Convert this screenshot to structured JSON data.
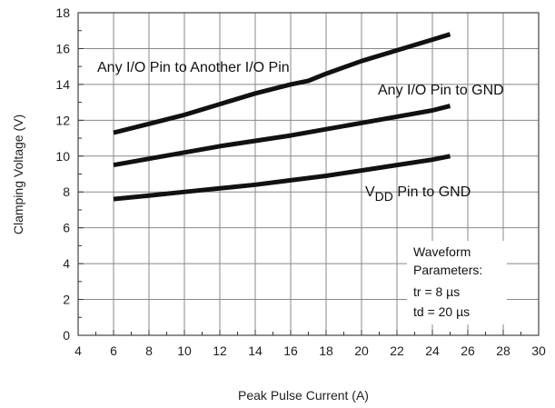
{
  "chart_data": {
    "type": "line",
    "title": "",
    "xlabel": "Peak Pulse Current (A)",
    "ylabel": "Clamping Voltage (V)",
    "xlim": [
      4,
      30
    ],
    "ylim": [
      0,
      18
    ],
    "xticks": [
      4,
      6,
      8,
      10,
      12,
      14,
      16,
      18,
      20,
      22,
      24,
      26,
      28,
      30
    ],
    "yticks": [
      0,
      2,
      4,
      6,
      8,
      10,
      12,
      14,
      16,
      18
    ],
    "grid": true,
    "legend": "none",
    "line_color": "#111111",
    "grid_color": "#888888",
    "series": [
      {
        "name": "Any I/O Pin to Another I/O Pin",
        "x": [
          6,
          8,
          10,
          12,
          14,
          16,
          17,
          18,
          20,
          22,
          24,
          25
        ],
        "y": [
          11.3,
          11.8,
          12.3,
          12.9,
          13.5,
          14.0,
          14.2,
          14.6,
          15.3,
          15.9,
          16.5,
          16.8
        ]
      },
      {
        "name": "Any I/O Pin to GND",
        "x": [
          6,
          8,
          10,
          12,
          14,
          16,
          18,
          20,
          22,
          24,
          25
        ],
        "y": [
          9.5,
          9.85,
          10.2,
          10.55,
          10.85,
          11.15,
          11.5,
          11.85,
          12.2,
          12.55,
          12.8
        ]
      },
      {
        "name": "V",
        "name_sub": "DD",
        "name_rest": " Pin to GND",
        "x": [
          6,
          8,
          10,
          12,
          14,
          16,
          18,
          20,
          22,
          24,
          25
        ],
        "y": [
          7.6,
          7.8,
          8.0,
          8.2,
          8.4,
          8.65,
          8.9,
          9.2,
          9.5,
          9.8,
          10.0
        ]
      }
    ],
    "annotation": [
      "Waveform",
      "Parameters:",
      "tr = 8 µs",
      "td = 20 µs"
    ]
  }
}
